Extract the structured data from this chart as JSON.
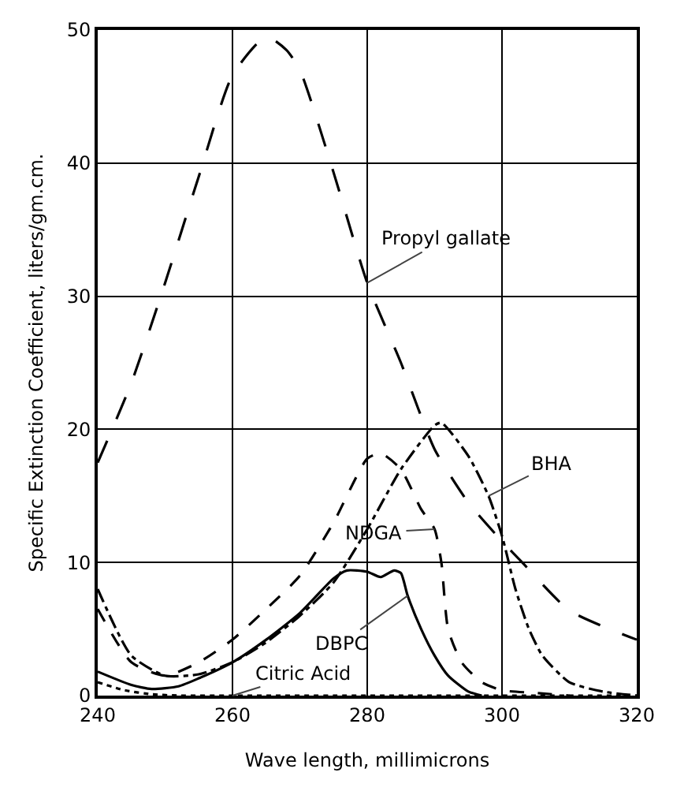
{
  "chart_data": {
    "type": "line",
    "xlabel": "Wave length, millimicrons",
    "ylabel": "Specific Extinction Coefficient, liters/gm.cm.",
    "xlim": [
      240,
      320
    ],
    "ylim": [
      0,
      50
    ],
    "xticks": [
      240,
      260,
      280,
      300,
      320
    ],
    "yticks": [
      0,
      10,
      20,
      30,
      40,
      50
    ],
    "grid": true,
    "legend": false,
    "marker": "none",
    "series": [
      {
        "name": "Propyl gallate",
        "color": "#000000",
        "line_style": "longdash",
        "x": [
          240,
          245,
          250,
          255,
          260,
          265,
          268,
          270,
          275,
          280,
          285,
          290,
          295,
          300,
          303,
          310,
          320
        ],
        "values": [
          17.5,
          23.5,
          31,
          39,
          46.6,
          49.5,
          48.5,
          47,
          39.3,
          31,
          25,
          18.5,
          14.5,
          11.6,
          10,
          6.4,
          4.2
        ]
      },
      {
        "name": "BHA",
        "color": "#000000",
        "line_style": "dashdot",
        "x": [
          240,
          245,
          250,
          255,
          260,
          265,
          270,
          275,
          280,
          285,
          290,
          291,
          295,
          298,
          300,
          302,
          304,
          306,
          310,
          315,
          320
        ],
        "values": [
          8,
          3,
          1.5,
          1.6,
          2.5,
          4,
          6,
          8.5,
          12.5,
          17,
          20.3,
          20.5,
          18,
          15,
          12,
          8,
          5,
          3,
          1,
          0.3,
          0
        ]
      },
      {
        "name": "NDGA",
        "color": "#000000",
        "line_style": "dash",
        "x": [
          240,
          245,
          250,
          255,
          260,
          265,
          270,
          275,
          280,
          282,
          285,
          288,
          290,
          291,
          292,
          294,
          297,
          300,
          305,
          310
        ],
        "values": [
          6.5,
          2.5,
          1.5,
          2.5,
          4.2,
          6.5,
          9,
          13,
          17.8,
          18.2,
          17,
          14,
          12.5,
          10,
          5,
          2.5,
          1,
          0.4,
          0.2,
          0
        ]
      },
      {
        "name": "DBPC",
        "color": "#000000",
        "line_style": "solid",
        "x": [
          240,
          245,
          248,
          252,
          255,
          260,
          265,
          270,
          275,
          277,
          280,
          282,
          284,
          285,
          286,
          288,
          290,
          292,
          295,
          297
        ],
        "values": [
          1.8,
          0.8,
          0.5,
          0.7,
          1.3,
          2.5,
          4.2,
          6.2,
          8.8,
          9.4,
          9.3,
          8.9,
          9.4,
          9.2,
          7.5,
          5,
          3,
          1.5,
          0.3,
          0
        ]
      },
      {
        "name": "Citric Acid",
        "color": "#000000",
        "line_style": "dot",
        "x": [
          240,
          244,
          248,
          252,
          260,
          280,
          300,
          320
        ],
        "values": [
          1,
          0.4,
          0.1,
          0,
          0,
          0,
          0,
          0
        ]
      }
    ]
  }
}
